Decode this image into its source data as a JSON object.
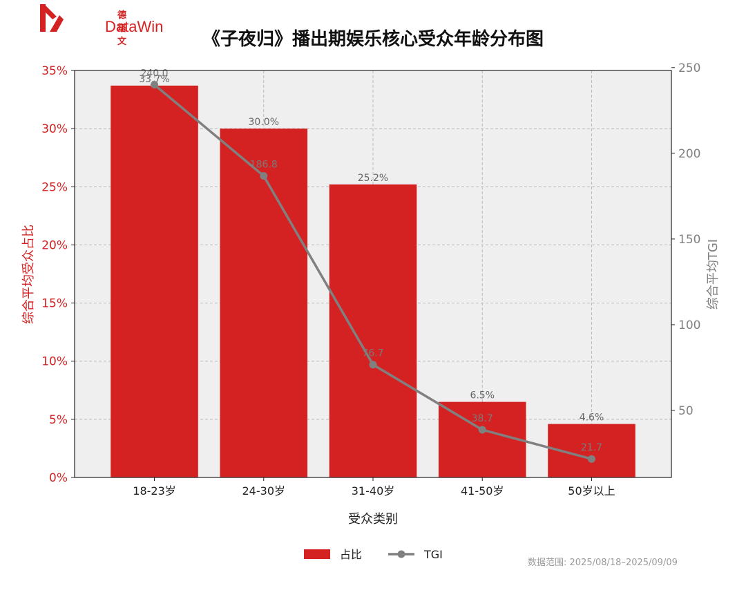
{
  "brand": {
    "logo_cn": "德塔文",
    "logo_en": "DataWin"
  },
  "footnote": "数据范围: 2025/08/18–2025/09/09",
  "colors": {
    "bar": "#d42222",
    "line": "#808080",
    "plot_bg": "#efefef",
    "left_axis": "#d42222",
    "right_axis": "#808080"
  },
  "chart_data": {
    "type": "bar",
    "title": "《子夜归》播出期娱乐核心受众年龄分布图",
    "xlabel": "受众类别",
    "ylabel_left": "综合平均受众占比",
    "ylabel_right": "综合平均TGI",
    "categories": [
      "18-23岁",
      "24-30岁",
      "31-40岁",
      "41-50岁",
      "50岁以上"
    ],
    "series": [
      {
        "name": "占比",
        "kind": "bar",
        "axis": "left",
        "values": [
          33.7,
          30.0,
          25.2,
          6.5,
          4.6
        ],
        "labels": [
          "33.7%",
          "30.0%",
          "25.2%",
          "6.5%",
          "4.6%"
        ]
      },
      {
        "name": "TGI",
        "kind": "line",
        "axis": "right",
        "values": [
          240.0,
          186.8,
          76.7,
          38.7,
          21.7
        ],
        "labels": [
          "240.0",
          "186.8",
          "76.7",
          "38.7",
          "21.7"
        ]
      }
    ],
    "ylim_left": [
      0,
      35
    ],
    "yticks_left": [
      "0%",
      "5%",
      "10%",
      "15%",
      "20%",
      "25%",
      "30%",
      "35%"
    ],
    "ylim_right": [
      10.9,
      248.3
    ],
    "yticks_right": [
      50,
      100,
      150,
      200,
      250
    ],
    "grid": true,
    "legend": "bottom-center"
  }
}
